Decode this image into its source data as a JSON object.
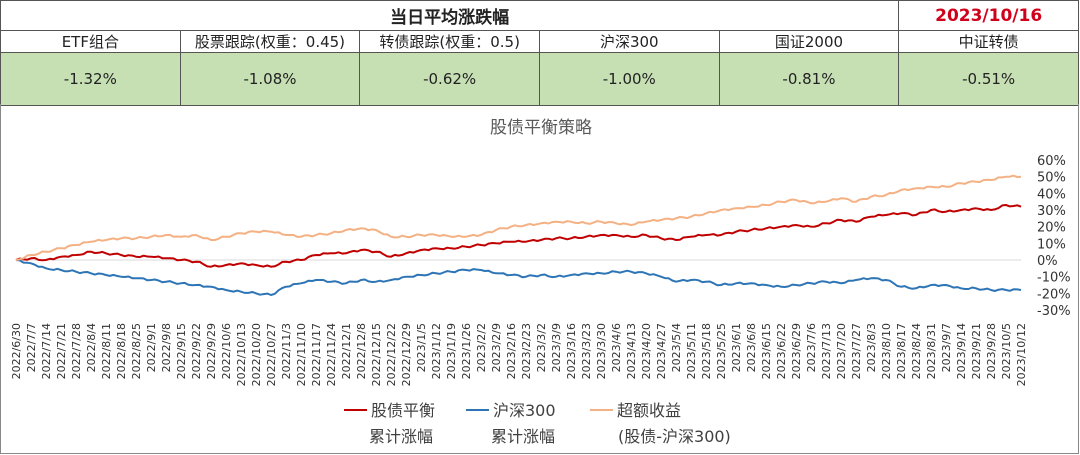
{
  "summary": {
    "title": "当日平均涨跌幅",
    "date": "2023/10/16",
    "columns": [
      "ETF组合",
      "股票跟踪(权重：0.45)",
      "转债跟踪(权重：0.5)",
      "沪深300",
      "国证2000",
      "中证转债"
    ],
    "values": [
      "-1.32%",
      "-1.08%",
      "-0.62%",
      "-1.00%",
      "-0.81%",
      "-0.51%"
    ]
  },
  "colors": {
    "header_value_bg": "#c6e0b4",
    "date_text": "#d0021b",
    "series_balance": "#c00000",
    "series_hs300": "#2e75b6",
    "series_excess": "#f4b183"
  },
  "chart_data": {
    "type": "line",
    "title": "股债平衡策略",
    "ylim": [
      -0.3,
      0.6
    ],
    "yticks": [
      "60%",
      "50%",
      "40%",
      "30%",
      "20%",
      "10%",
      "0%",
      "-10%",
      "-20%",
      "-30%"
    ],
    "xtick_labels": [
      "2022/6/30",
      "2022/7/7",
      "2022/7/14",
      "2022/7/21",
      "2022/7/28",
      "2022/8/4",
      "2022/8/11",
      "2022/8/18",
      "2022/8/25",
      "2022/9/1",
      "2022/9/8",
      "2022/9/15",
      "2022/9/22",
      "2022/9/29",
      "2022/10/6",
      "2022/10/13",
      "2022/10/20",
      "2022/10/27",
      "2022/11/3",
      "2022/11/10",
      "2022/11/17",
      "2022/11/24",
      "2022/12/1",
      "2022/12/8",
      "2022/12/15",
      "2022/12/22",
      "2022/12/29",
      "2023/1/5",
      "2023/1/12",
      "2023/1/19",
      "2023/1/26",
      "2023/2/2",
      "2023/2/9",
      "2023/2/16",
      "2023/2/23",
      "2023/3/2",
      "2023/3/9",
      "2023/3/16",
      "2023/3/23",
      "2023/3/30",
      "2023/4/6",
      "2023/4/13",
      "2023/4/20",
      "2023/4/27",
      "2023/5/4",
      "2023/5/11",
      "2023/5/18",
      "2023/5/25",
      "2023/6/1",
      "2023/6/8",
      "2023/6/15",
      "2023/6/22",
      "2023/6/29",
      "2023/7/6",
      "2023/7/13",
      "2023/7/20",
      "2023/7/27",
      "2023/8/3",
      "2023/8/10",
      "2023/8/17",
      "2023/8/24",
      "2023/8/31",
      "2023/9/7",
      "2023/9/14",
      "2023/9/21",
      "2023/9/28",
      "2023/10/5",
      "2023/10/12"
    ],
    "series": [
      {
        "name": "股债平衡累计涨幅",
        "values": [
          0.0,
          0.01,
          0.0,
          0.02,
          0.03,
          0.05,
          0.04,
          0.03,
          0.02,
          0.02,
          0.01,
          0.0,
          -0.01,
          -0.04,
          -0.03,
          -0.02,
          -0.03,
          -0.04,
          -0.01,
          0.0,
          0.03,
          0.04,
          0.04,
          0.06,
          0.05,
          0.02,
          0.04,
          0.06,
          0.07,
          0.07,
          0.08,
          0.09,
          0.1,
          0.11,
          0.11,
          0.12,
          0.13,
          0.13,
          0.14,
          0.15,
          0.15,
          0.14,
          0.15,
          0.13,
          0.12,
          0.14,
          0.15,
          0.15,
          0.17,
          0.18,
          0.19,
          0.2,
          0.21,
          0.2,
          0.22,
          0.24,
          0.23,
          0.26,
          0.27,
          0.28,
          0.27,
          0.3,
          0.29,
          0.3,
          0.31,
          0.3,
          0.33,
          0.32
        ]
      },
      {
        "name": "沪深300累计涨幅",
        "values": [
          0.0,
          -0.02,
          -0.05,
          -0.06,
          -0.07,
          -0.08,
          -0.09,
          -0.1,
          -0.11,
          -0.12,
          -0.13,
          -0.14,
          -0.15,
          -0.16,
          -0.18,
          -0.19,
          -0.2,
          -0.21,
          -0.16,
          -0.14,
          -0.12,
          -0.13,
          -0.14,
          -0.12,
          -0.13,
          -0.12,
          -0.1,
          -0.09,
          -0.08,
          -0.07,
          -0.06,
          -0.06,
          -0.08,
          -0.09,
          -0.1,
          -0.09,
          -0.1,
          -0.09,
          -0.08,
          -0.08,
          -0.07,
          -0.07,
          -0.08,
          -0.1,
          -0.13,
          -0.12,
          -0.13,
          -0.15,
          -0.14,
          -0.14,
          -0.15,
          -0.16,
          -0.15,
          -0.14,
          -0.13,
          -0.14,
          -0.12,
          -0.11,
          -0.12,
          -0.16,
          -0.17,
          -0.15,
          -0.15,
          -0.17,
          -0.17,
          -0.18,
          -0.18,
          -0.18
        ]
      },
      {
        "name": "超额收益(股债-沪深300)",
        "values": [
          0.0,
          0.03,
          0.05,
          0.07,
          0.09,
          0.11,
          0.12,
          0.13,
          0.13,
          0.14,
          0.15,
          0.14,
          0.15,
          0.12,
          0.14,
          0.16,
          0.17,
          0.17,
          0.15,
          0.14,
          0.15,
          0.16,
          0.18,
          0.19,
          0.18,
          0.14,
          0.14,
          0.15,
          0.15,
          0.14,
          0.14,
          0.15,
          0.18,
          0.2,
          0.21,
          0.22,
          0.23,
          0.23,
          0.22,
          0.23,
          0.22,
          0.21,
          0.23,
          0.24,
          0.25,
          0.26,
          0.28,
          0.3,
          0.31,
          0.32,
          0.33,
          0.35,
          0.36,
          0.34,
          0.35,
          0.37,
          0.35,
          0.38,
          0.39,
          0.42,
          0.43,
          0.44,
          0.44,
          0.46,
          0.47,
          0.48,
          0.5,
          0.5
        ]
      }
    ],
    "legend": [
      {
        "line1": "股债平衡",
        "line2": "累计涨幅"
      },
      {
        "line1": "沪深300",
        "line2": "累计涨幅"
      },
      {
        "line1": "超额收益",
        "line2": "(股债-沪深300)"
      }
    ],
    "legend_position": "bottom",
    "grid": false
  }
}
